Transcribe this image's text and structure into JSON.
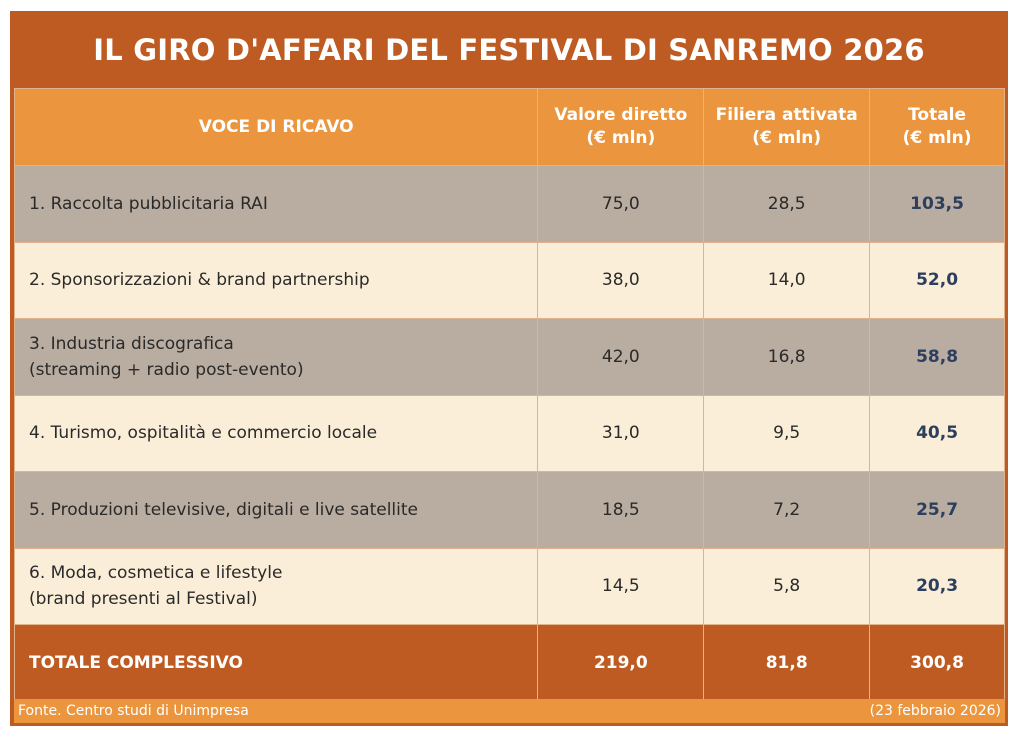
{
  "title": "IL GIRO D'AFFARI DEL FESTIVAL DI SANREMO 2026",
  "headers": {
    "voce": "VOCE DI RICAVO",
    "diretto": [
      "Valore diretto",
      "(€ mln)"
    ],
    "filiera": [
      "Filiera attivata",
      "(€ mln)"
    ],
    "totale": [
      "Totale",
      "(€ mln)"
    ]
  },
  "rows": [
    {
      "voce": [
        "1. Raccolta pubblicitaria RAI"
      ],
      "diretto": "75,0",
      "filiera": "28,5",
      "totale": "103,5"
    },
    {
      "voce": [
        "2. Sponsorizzazioni & brand partnership"
      ],
      "diretto": "38,0",
      "filiera": "14,0",
      "totale": "52,0"
    },
    {
      "voce": [
        "3. Industria discografica",
        "(streaming + radio post-evento)"
      ],
      "diretto": "42,0",
      "filiera": "16,8",
      "totale": "58,8"
    },
    {
      "voce": [
        "4. Turismo, ospitalità e commercio locale"
      ],
      "diretto": "31,0",
      "filiera": "9,5",
      "totale": "40,5"
    },
    {
      "voce": [
        "5. Produzioni televisive, digitali e live satellite"
      ],
      "diretto": "18,5",
      "filiera": "7,2",
      "totale": "25,7"
    },
    {
      "voce": [
        "6. Moda, cosmetica e lifestyle",
        "(brand presenti al Festival)"
      ],
      "diretto": "14,5",
      "filiera": "5,8",
      "totale": "20,3"
    }
  ],
  "total": {
    "label": "TOTALE COMPLESSIVO",
    "diretto": "219,0",
    "filiera": "81,8",
    "totale": "300,8"
  },
  "footer": {
    "source": "Fonte. Centro studi di Unimpresa",
    "date": "(23 febbraio 2026)"
  },
  "colors": {
    "dark_orange": "#be5b22",
    "orange": "#eb963f",
    "gray_row": "#b9aca0",
    "cream_row": "#fbeed8",
    "total_text": "#2c3f5e"
  }
}
